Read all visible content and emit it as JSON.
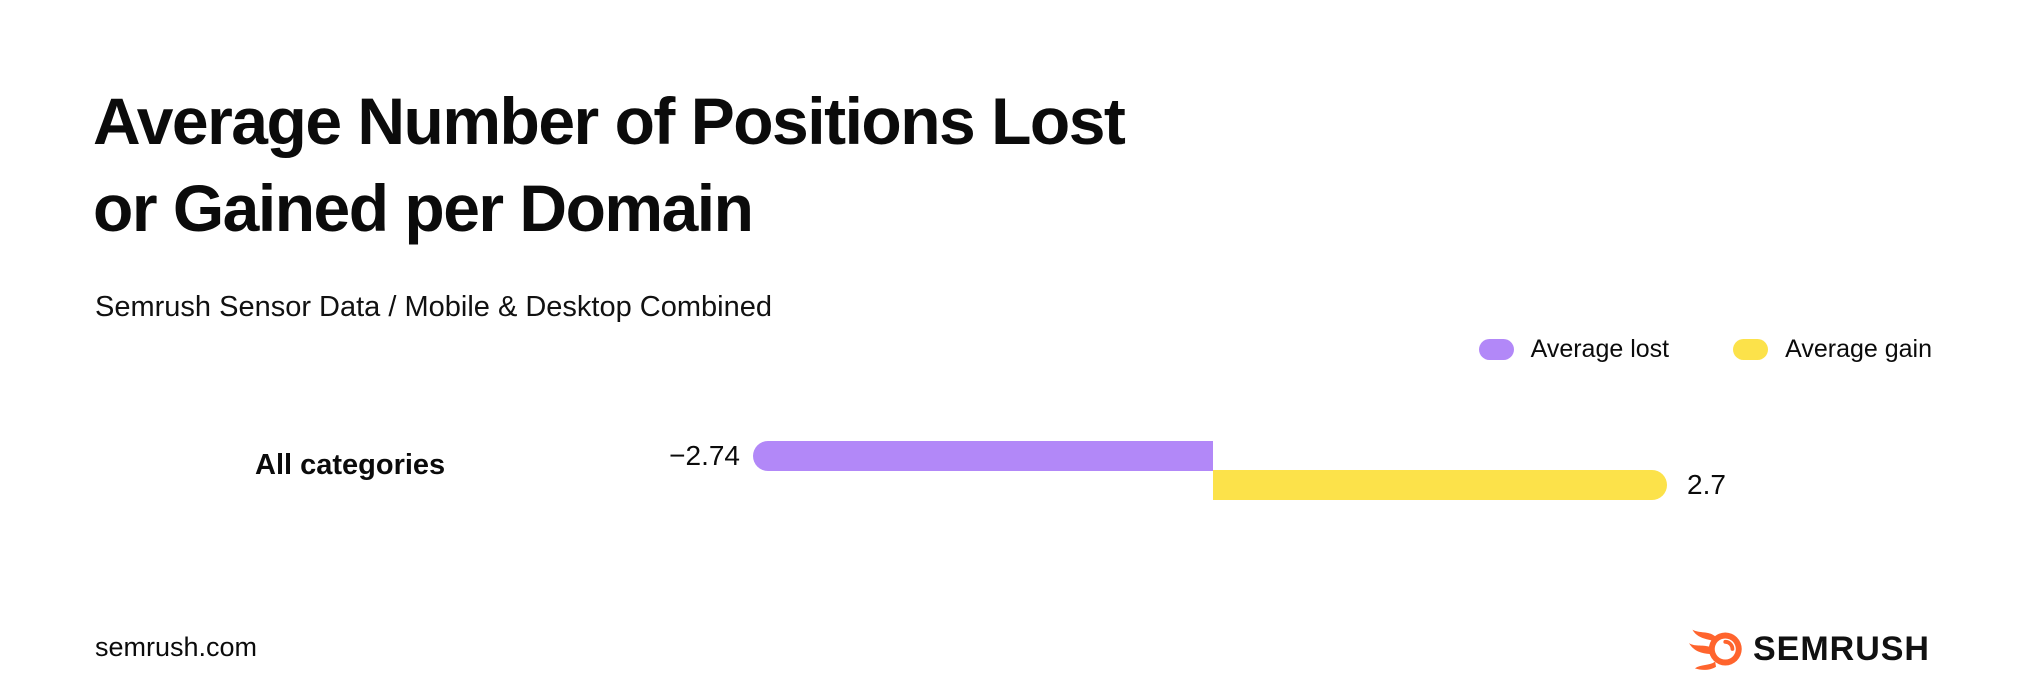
{
  "header": {
    "title_line1": "Average Number of Positions Lost",
    "title_line2": "or Gained per Domain",
    "subtitle": "Semrush Sensor Data / Mobile & Desktop Combined"
  },
  "legend": {
    "items": [
      {
        "label": "Average lost",
        "color": "#B288F8"
      },
      {
        "label": "Average gain",
        "color": "#FCE24A"
      }
    ]
  },
  "chart_data": {
    "type": "bar",
    "orientation": "horizontal",
    "title": "Average Number of Positions Lost or Gained per Domain",
    "subtitle": "Semrush Sensor Data / Mobile & Desktop Combined",
    "categories": [
      "All categories"
    ],
    "series": [
      {
        "name": "Average lost",
        "values": [
          -2.74
        ],
        "color": "#B288F8",
        "value_label": "−2.74"
      },
      {
        "name": "Average gain",
        "values": [
          2.7
        ],
        "color": "#FCE24A",
        "value_label": "2.7"
      }
    ],
    "legend_position": "top-right",
    "grid": false,
    "value_labels_shown": true
  },
  "footer": {
    "website": "semrush.com",
    "brand": "SEMRUSH"
  },
  "colors": {
    "lost_purple": "#B288F8",
    "gain_yellow": "#FCE24A",
    "brand_orange": "#FF642D",
    "text": "#0B0B0B",
    "background": "#FFFFFF"
  },
  "icons": {
    "brand_logo": "semrush-fireball-icon"
  }
}
